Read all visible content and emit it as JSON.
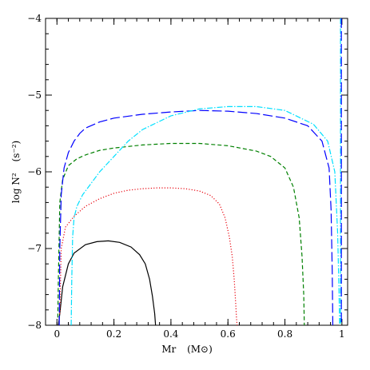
{
  "chart_data": {
    "type": "line",
    "title": "",
    "xlabel": "Mr",
    "xlabel_unit": "(M⊙)",
    "ylabel": "log N²",
    "ylabel_unit": "(s⁻²)",
    "xlim": [
      -0.04,
      1.02
    ],
    "ylim": [
      -8,
      -4
    ],
    "x_ticks": [
      0,
      0.2,
      0.4,
      0.6,
      0.8,
      1
    ],
    "x_tick_labels": [
      "0",
      "0.2",
      "0.4",
      "0.6",
      "0.8",
      "1"
    ],
    "y_ticks": [
      -8,
      -7,
      -6,
      -5,
      -4
    ],
    "y_tick_labels": [
      "−8",
      "−7",
      "−6",
      "−5",
      "−4"
    ],
    "grid": false,
    "series": [
      {
        "color": "#000000",
        "dash": "",
        "x": [
          0.005,
          0.01,
          0.02,
          0.04,
          0.06,
          0.1,
          0.14,
          0.18,
          0.22,
          0.26,
          0.29,
          0.31,
          0.325,
          0.335,
          0.343,
          0.346
        ],
        "y": [
          -8.0,
          -7.85,
          -7.5,
          -7.2,
          -7.06,
          -6.95,
          -6.91,
          -6.9,
          -6.92,
          -6.98,
          -7.08,
          -7.2,
          -7.4,
          -7.62,
          -7.85,
          -8.0
        ]
      },
      {
        "color": "#e8000b",
        "dash": "1.2 2.2",
        "x": [
          0.01,
          0.015,
          0.03,
          0.06,
          0.1,
          0.15,
          0.2,
          0.25,
          0.3,
          0.35,
          0.4,
          0.45,
          0.5,
          0.54,
          0.57,
          0.59,
          0.605,
          0.615,
          0.622,
          0.627,
          0.63,
          0.632
        ],
        "y": [
          -7.85,
          -7.0,
          -6.72,
          -6.58,
          -6.45,
          -6.35,
          -6.28,
          -6.24,
          -6.22,
          -6.21,
          -6.21,
          -6.22,
          -6.25,
          -6.31,
          -6.42,
          -6.6,
          -6.85,
          -7.1,
          -7.4,
          -7.7,
          -7.9,
          -8.0
        ]
      },
      {
        "color": "#008000",
        "dash": "5 3",
        "x": [
          0.003,
          0.005,
          0.01,
          0.02,
          0.04,
          0.07,
          0.1,
          0.15,
          0.2,
          0.3,
          0.4,
          0.5,
          0.6,
          0.7,
          0.75,
          0.8,
          0.83,
          0.85,
          0.86,
          0.866,
          0.868
        ],
        "y": [
          -7.9,
          -7.4,
          -6.4,
          -6.1,
          -5.92,
          -5.83,
          -5.78,
          -5.72,
          -5.69,
          -5.65,
          -5.63,
          -5.63,
          -5.66,
          -5.73,
          -5.8,
          -5.95,
          -6.2,
          -6.6,
          -7.1,
          -7.6,
          -8.0
        ]
      },
      {
        "color": "#0000ff",
        "dash": "12 4",
        "x": [
          0.008,
          0.01,
          0.015,
          0.025,
          0.04,
          0.06,
          0.08,
          0.1,
          0.15,
          0.2,
          0.3,
          0.4,
          0.5,
          0.6,
          0.7,
          0.8,
          0.88,
          0.93,
          0.955,
          0.962,
          0.966,
          0.968
        ],
        "y": [
          -8.0,
          -7.0,
          -6.3,
          -5.95,
          -5.75,
          -5.6,
          -5.5,
          -5.43,
          -5.35,
          -5.3,
          -5.25,
          -5.22,
          -5.2,
          -5.21,
          -5.24,
          -5.3,
          -5.4,
          -5.6,
          -5.95,
          -6.5,
          -7.3,
          -8.0
        ]
      },
      {
        "color": "#00e0ff",
        "dash": "7 2 1.5 2",
        "x": [
          0.05,
          0.052,
          0.055,
          0.06,
          0.07,
          0.09,
          0.12,
          0.15,
          0.2,
          0.25,
          0.3,
          0.4,
          0.5,
          0.6,
          0.7,
          0.8,
          0.9,
          0.95,
          0.975,
          0.985,
          0.99,
          0.992
        ],
        "y": [
          -8.0,
          -7.4,
          -6.85,
          -6.6,
          -6.45,
          -6.3,
          -6.15,
          -6.0,
          -5.8,
          -5.6,
          -5.45,
          -5.27,
          -5.18,
          -5.15,
          -5.15,
          -5.2,
          -5.38,
          -5.6,
          -6.0,
          -6.8,
          -7.6,
          -8.0
        ]
      }
    ],
    "extras": [
      {
        "type": "vline",
        "x": 0.995,
        "color": "#00e0ff",
        "dash": "7 2 1.5 2"
      },
      {
        "type": "vline",
        "x": 0.998,
        "color": "#0000ff",
        "dash": "12 4"
      }
    ]
  }
}
